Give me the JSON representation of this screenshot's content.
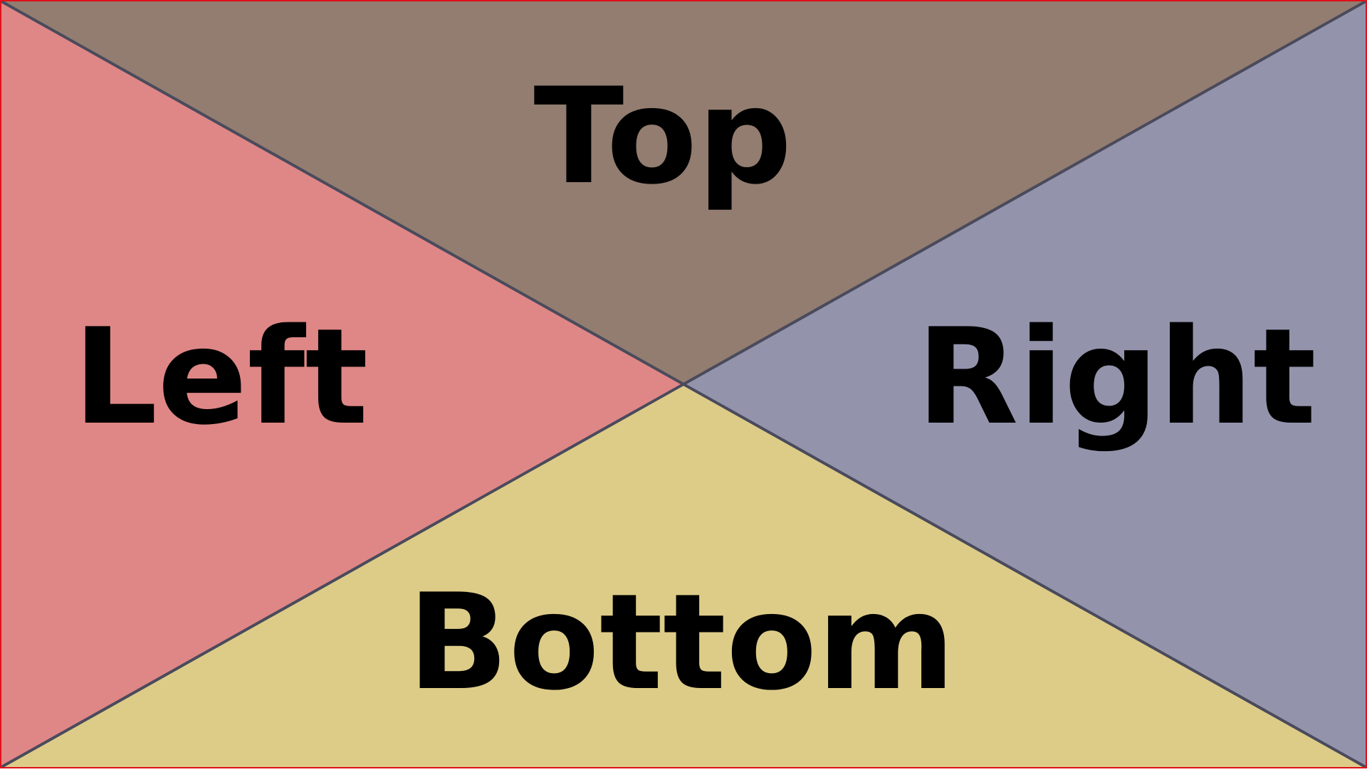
{
  "labels": {
    "top": "Top",
    "left": "Left",
    "right": "Right",
    "bottom": "Bottom"
  },
  "colors": {
    "top": "#927D70",
    "left": "#DF8786",
    "right": "#9394AC",
    "bottom": "#DDCC88",
    "divider": "#4A4A5C",
    "border": "#E0101A"
  }
}
